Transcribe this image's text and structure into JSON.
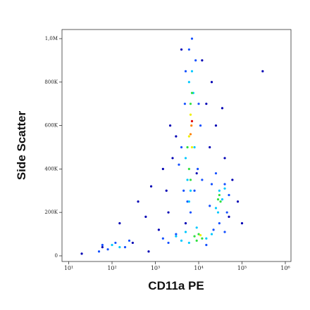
{
  "chart_data": {
    "type": "scatter",
    "xlabel": "CD11a PE",
    "ylabel": "Side Scatter",
    "xscale": "log",
    "xlim": [
      7,
      1350000
    ],
    "ylim": [
      -26000,
      1042000
    ],
    "xticks": [
      {
        "value": 10,
        "label": "10¹"
      },
      {
        "value": 100,
        "label": "10²"
      },
      {
        "value": 1000,
        "label": "10³"
      },
      {
        "value": 10000,
        "label": "10⁴"
      },
      {
        "value": 100000,
        "label": "10⁵"
      },
      {
        "value": 1000000,
        "label": "10⁶"
      }
    ],
    "yticks": [
      0,
      {
        "value": 200000,
        "label": "200K"
      },
      {
        "value": 400000,
        "label": "400K"
      },
      {
        "value": 600000,
        "label": "600K"
      },
      {
        "value": 800000,
        "label": "800K"
      },
      {
        "value": 1000000,
        "label": "1,0M"
      }
    ],
    "series": [
      {
        "color": "#0000b4",
        "x": [
          20,
          60,
          150,
          400,
          800,
          1500,
          2500,
          3000,
          4000,
          12000,
          15000,
          20000,
          25000,
          40000,
          60000,
          80000,
          100000,
          300000,
          2000,
          1200,
          600,
          300,
          5000,
          18000,
          9000,
          50000,
          1800,
          35000,
          2200,
          700
        ],
        "y": [
          10000,
          40000,
          150000,
          250000,
          320000,
          400000,
          450000,
          550000,
          950000,
          900000,
          700000,
          800000,
          600000,
          450000,
          350000,
          250000,
          150000,
          850000,
          200000,
          120000,
          180000,
          60000,
          150000,
          500000,
          380000,
          180000,
          300000,
          680000,
          600000,
          20000
        ]
      },
      {
        "color": "#1450ff",
        "x": [
          4500,
          5000,
          6000,
          8500,
          10000,
          9500,
          5500,
          7000,
          4000,
          6500,
          12000,
          11000,
          3500,
          4800,
          8000,
          20000,
          25000,
          45000,
          50000,
          30000,
          18000,
          22000,
          40000,
          1500,
          2000,
          3000,
          15000,
          40000,
          80,
          120,
          60,
          200,
          250,
          50
        ],
        "y": [
          300000,
          850000,
          950000,
          900000,
          700000,
          400000,
          250000,
          1000000,
          500000,
          200000,
          350000,
          600000,
          420000,
          700000,
          300000,
          330000,
          380000,
          200000,
          280000,
          150000,
          230000,
          120000,
          330000,
          80000,
          60000,
          100000,
          50000,
          110000,
          30000,
          60000,
          50000,
          40000,
          70000,
          20000
        ]
      },
      {
        "color": "#00c8ff",
        "x": [
          5500,
          6000,
          7000,
          6500,
          5000,
          7500,
          8000,
          6000,
          25000,
          30000,
          35000,
          28000,
          40000,
          3000,
          4000,
          5000,
          6000,
          9000,
          15000,
          20000,
          100,
          150
        ],
        "y": [
          350000,
          800000,
          850000,
          300000,
          450000,
          750000,
          500000,
          250000,
          220000,
          300000,
          260000,
          200000,
          310000,
          90000,
          70000,
          110000,
          60000,
          130000,
          80000,
          100000,
          50000,
          40000
        ]
      },
      {
        "color": "#30e040",
        "x": [
          6000,
          6500,
          7000,
          5500,
          6500,
          30000,
          32000,
          28000,
          8000,
          10000,
          12000,
          9000
        ],
        "y": [
          400000,
          700000,
          750000,
          500000,
          350000,
          280000,
          250000,
          260000,
          90000,
          100000,
          80000,
          70000
        ]
      },
      {
        "color": "#f0f000",
        "x": [
          6500,
          7000,
          6000,
          11000
        ],
        "y": [
          650000,
          500000,
          550000,
          95000
        ]
      },
      {
        "color": "#ff8000",
        "x": [
          6800,
          6500
        ],
        "y": [
          600000,
          560000
        ]
      },
      {
        "color": "#e00000",
        "x": [
          7000
        ],
        "y": [
          620000
        ]
      }
    ]
  }
}
